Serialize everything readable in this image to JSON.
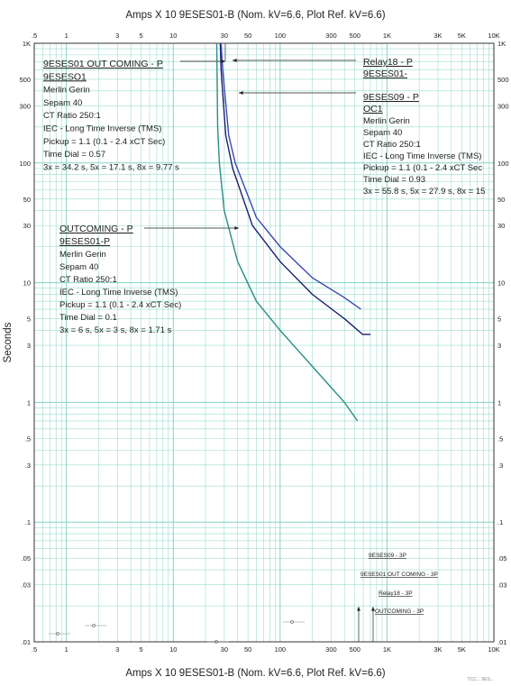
{
  "chart_data": {
    "type": "line",
    "title": "Amps  X  10   9ESES01-B (Nom. kV=6.6, Plot Ref. kV=6.6)",
    "xlabel": "Amps  X  10   9ESES01-B (Nom. kV=6.6, Plot Ref. kV=6.6)",
    "ylabel": "Seconds",
    "x_scale": "log",
    "y_scale": "log",
    "xlim": [
      0.5,
      10000
    ],
    "ylim": [
      0.01,
      1000
    ],
    "x_ticks": [
      {
        "v": 0.5,
        "label": ".5"
      },
      {
        "v": 1,
        "label": "1"
      },
      {
        "v": 3,
        "label": "3"
      },
      {
        "v": 5,
        "label": "5"
      },
      {
        "v": 10,
        "label": "10"
      },
      {
        "v": 30,
        "label": "30"
      },
      {
        "v": 50,
        "label": "50"
      },
      {
        "v": 100,
        "label": "100"
      },
      {
        "v": 300,
        "label": "300"
      },
      {
        "v": 500,
        "label": "500"
      },
      {
        "v": 1000,
        "label": "1K"
      },
      {
        "v": 3000,
        "label": "3K"
      },
      {
        "v": 5000,
        "label": "5K"
      },
      {
        "v": 10000,
        "label": "10K"
      }
    ],
    "y_ticks": [
      {
        "v": 1000,
        "label": "1K"
      },
      {
        "v": 500,
        "label": "500"
      },
      {
        "v": 300,
        "label": "300"
      },
      {
        "v": 100,
        "label": "100"
      },
      {
        "v": 50,
        "label": "50"
      },
      {
        "v": 30,
        "label": "30"
      },
      {
        "v": 10,
        "label": "10"
      },
      {
        "v": 5,
        "label": "5"
      },
      {
        "v": 3,
        "label": "3"
      },
      {
        "v": 1,
        "label": "1"
      },
      {
        "v": 0.5,
        "label": ".5"
      },
      {
        "v": 0.3,
        "label": ".3"
      },
      {
        "v": 0.1,
        "label": ".1"
      },
      {
        "v": 0.05,
        "label": ".05"
      },
      {
        "v": 0.03,
        "label": ".03"
      },
      {
        "v": 0.01,
        "label": ".01"
      }
    ],
    "grid": true,
    "colors": {
      "grid": "#7dd3c0",
      "frame": "#333333",
      "teal": "#2a8f84",
      "navy": "#1a1f6e",
      "blue": "#3a48b0",
      "arrow": "#555555"
    },
    "series": [
      {
        "color": "#2a8f84",
        "points": [
          [
            25.5,
            1000
          ],
          [
            26,
            200
          ],
          [
            27,
            100
          ],
          [
            30,
            40
          ],
          [
            40,
            15
          ],
          [
            60,
            7
          ],
          [
            100,
            4
          ],
          [
            200,
            2
          ],
          [
            400,
            1
          ],
          [
            530,
            0.7
          ]
        ]
      },
      {
        "color": "#1a1f6e",
        "points": [
          [
            27.5,
            1000
          ],
          [
            28,
            600
          ],
          [
            31,
            170
          ],
          [
            36,
            90
          ],
          [
            55,
            30
          ],
          [
            100,
            15
          ],
          [
            200,
            8
          ],
          [
            400,
            5
          ],
          [
            590,
            3.7
          ],
          [
            700,
            3.7
          ]
        ]
      },
      {
        "color": "#3a48b0",
        "points": [
          [
            28,
            1000
          ],
          [
            29,
            600
          ],
          [
            33,
            170
          ],
          [
            38,
            100
          ],
          [
            60,
            35
          ],
          [
            100,
            20
          ],
          [
            200,
            11
          ],
          [
            400,
            7.5
          ],
          [
            570,
            6
          ]
        ]
      }
    ],
    "annotations": [
      {
        "id": "ann1",
        "lines": [
          {
            "text": "9ESES01 OUT COMING - P",
            "underline": true,
            "size": 10.5
          },
          {
            "text": "9ESESO1",
            "underline": true,
            "size": 10.5
          },
          {
            "text": "Merlin Gerin"
          },
          {
            "text": "Sepam 40"
          },
          {
            "text": "CT Ratio 250:1"
          },
          {
            "text": "IEC - Long Time Inverse (TMS)"
          },
          {
            "text": "Pickup = 1.1 (0.1 - 2.4  xCT Sec)"
          },
          {
            "text": "Time Dial = 0.57"
          },
          {
            "text": "3x = 34.2 s, 5x = 17.1 s, 8x = 9.77 s"
          }
        ]
      },
      {
        "id": "ann2",
        "lines": [
          {
            "text": "Relay18 - P",
            "underline": true,
            "size": 10.5
          },
          {
            "text": "9ESES01-",
            "underline": true,
            "size": 10.5
          },
          {
            "text": " "
          },
          {
            "text": "9ESES09 - P",
            "underline": true,
            "size": 10.5
          },
          {
            "text": "OC1",
            "underline": true,
            "size": 10.5
          },
          {
            "text": "Merlin Gerin"
          },
          {
            "text": "Sepam 40"
          },
          {
            "text": "CT Ratio 250:1"
          },
          {
            "text": "IEC - Long Time Inverse (TMS)"
          },
          {
            "text": "Pickup = 1.1 (0.1 - 2.4  xCT Sec"
          },
          {
            "text": "Time Dial = 0.93"
          },
          {
            "text": "3x = 55.8 s, 5x = 27.9 s, 8x = 15"
          }
        ]
      },
      {
        "id": "ann3",
        "lines": [
          {
            "text": "OUTCOMING - P",
            "underline": true,
            "size": 10.5
          },
          {
            "text": "9ESES01-P",
            "underline": true,
            "size": 10.5
          },
          {
            "text": "Merlin Gerin"
          },
          {
            "text": "Sepam 40"
          },
          {
            "text": "CT Ratio 250:1"
          },
          {
            "text": "IEC - Long Time Inverse (TMS)"
          },
          {
            "text": "Pickup = 1.1 (0.1 - 2.4  xCT Sec)"
          },
          {
            "text": "Time Dial = 0.1"
          },
          {
            "text": "3x = 6 s, 5x = 3 s, 8x = 1.71 s"
          }
        ]
      }
    ],
    "legend_labels": [
      "9ESES09 - 3P",
      "9ESES01 OUT COMING - 3P",
      "Relay18 - 3P",
      "OUTCOMING - 3P"
    ],
    "footer_mark": "TCC... 9ES..."
  }
}
